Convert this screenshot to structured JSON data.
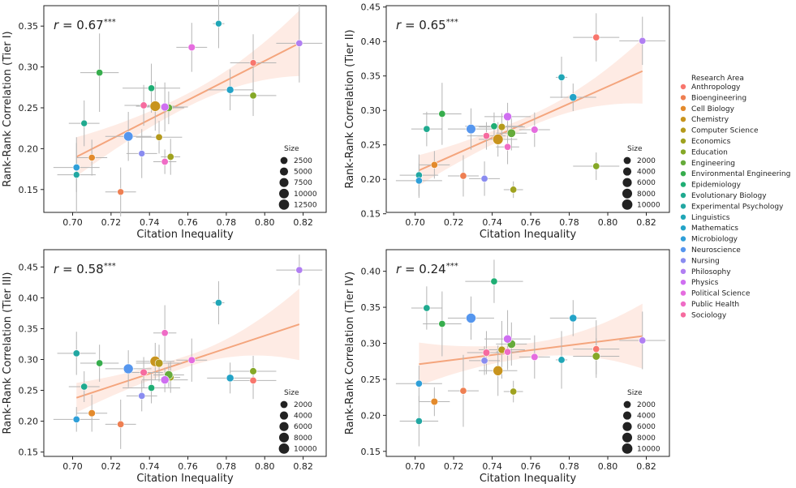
{
  "figure": {
    "legend_title": "Research Area",
    "areas": [
      "Anthropology",
      "Bioengineering",
      "Cell Biology",
      "Chemistry",
      "Computer Science",
      "Economics",
      "Education",
      "Engineering",
      "Environmental Engineering",
      "Epidemiology",
      "Evolutionary Biology",
      "Experimental Psychology",
      "Linguistics",
      "Mathematics",
      "Microbiology",
      "Neuroscience",
      "Nursing",
      "Philosophy",
      "Physics",
      "Political Science",
      "Public Health",
      "Sociology"
    ],
    "colors": [
      "#f8766d",
      "#ee7f52",
      "#e38a2c",
      "#c8941e",
      "#b59a1c",
      "#9fa21f",
      "#85a827",
      "#66ab3b",
      "#37ad4d",
      "#1fae74",
      "#20aa8f",
      "#22a7a2",
      "#20a6b6",
      "#23a3c7",
      "#2f9fd8",
      "#5596ee",
      "#8a8cf0",
      "#b17ff2",
      "#cf6ff1",
      "#e56ddf",
      "#ef6cc6",
      "#f66b9f"
    ],
    "inequality": [
      0.794,
      0.725,
      0.71,
      0.743,
      0.745,
      0.751,
      0.794,
      0.75,
      0.714,
      0.741,
      0.706,
      0.702,
      0.776,
      0.782,
      0.702,
      0.729,
      0.736,
      0.818,
      0.748,
      0.762,
      0.748,
      0.737
    ],
    "ineq_err": [
      0.012,
      0.008,
      0.008,
      0.01,
      0.012,
      0.005,
      0.012,
      0.008,
      0.01,
      0.015,
      0.008,
      0.01,
      0.003,
      0.012,
      0.012,
      0.012,
      0.008,
      0.012,
      0.012,
      0.008,
      0.006,
      0.01
    ]
  },
  "chart_data": [
    {
      "type": "scatter",
      "annotation": "r = 0.67***",
      "xlabel": "Citation Inequality",
      "ylabel": "Rank-Rank Correlation (Tier I)",
      "xlim": [
        0.685,
        0.832
      ],
      "ylim": [
        0.122,
        0.375
      ],
      "xticks": [
        0.7,
        0.72,
        0.74,
        0.76,
        0.78,
        0.8,
        0.82
      ],
      "xticklabels": [
        "0.70",
        "0.72",
        "0.74",
        "0.76",
        "0.78",
        "0.80",
        "0.82"
      ],
      "yticks": [
        0.15,
        0.2,
        0.25,
        0.3,
        0.35
      ],
      "yticklabels": [
        "0.15",
        "0.20",
        "0.25",
        "0.30",
        "0.35"
      ],
      "y": [
        0.305,
        0.147,
        0.189,
        0.252,
        0.214,
        0.19,
        0.265,
        0.25,
        0.293,
        0.274,
        0.231,
        0.168,
        0.353,
        0.272,
        0.177,
        0.215,
        0.194,
        0.329,
        0.251,
        0.324,
        0.184,
        0.253
      ],
      "y_err": [
        0.035,
        0.03,
        0.022,
        0.03,
        0.02,
        0.022,
        0.025,
        0.02,
        0.048,
        0.03,
        0.028,
        0.046,
        0.03,
        0.025,
        0.03,
        0.03,
        0.03,
        0.048,
        0.03,
        0.03,
        0.015,
        0.025
      ],
      "sizes": [
        1500,
        1500,
        1800,
        13000,
        2000,
        2000,
        2000,
        3500,
        2000,
        1800,
        1500,
        1500,
        1500,
        3000,
        2000,
        9000,
        1500,
        2000,
        4500,
        2500,
        2000,
        2000
      ],
      "fit": {
        "x0": 0.702,
        "y0": 0.19,
        "x1": 0.818,
        "y1": 0.329,
        "ci0": 0.024,
        "cim": 0.008,
        "ci1": 0.04
      },
      "size_legend": {
        "title": "Size",
        "labels": [
          "2500",
          "5000",
          "7500",
          "10000",
          "12500"
        ],
        "values": [
          2500,
          5000,
          7500,
          10000,
          12500
        ]
      }
    },
    {
      "type": "scatter",
      "annotation": "r = 0.65***",
      "xlabel": "Citation Inequality",
      "ylabel": "Rank-Rank Correlation (Tier II)",
      "xlim": [
        0.685,
        0.832
      ],
      "ylim": [
        0.152,
        0.452
      ],
      "xticks": [
        0.7,
        0.72,
        0.74,
        0.76,
        0.78,
        0.8,
        0.82
      ],
      "xticklabels": [
        "0.70",
        "0.72",
        "0.74",
        "0.76",
        "0.78",
        "0.80",
        "0.82"
      ],
      "yticks": [
        0.15,
        0.2,
        0.25,
        0.3,
        0.35,
        0.4,
        0.45
      ],
      "yticklabels": [
        "0.15",
        "0.20",
        "0.25",
        "0.30",
        "0.35",
        "0.40",
        "0.45"
      ],
      "y": [
        0.406,
        0.205,
        0.221,
        0.258,
        0.276,
        0.185,
        0.219,
        0.267,
        0.295,
        0.277,
        0.273,
        0.206,
        0.348,
        0.319,
        0.198,
        0.273,
        0.201,
        0.401,
        0.291,
        0.272,
        0.247,
        0.263
      ],
      "y_err": [
        0.035,
        0.03,
        0.02,
        0.025,
        0.02,
        0.012,
        0.02,
        0.025,
        0.045,
        0.02,
        0.025,
        0.03,
        0.03,
        0.02,
        0.025,
        0.03,
        0.025,
        0.035,
        0.02,
        0.025,
        0.025,
        0.02
      ],
      "sizes": [
        1500,
        1500,
        1500,
        10000,
        2000,
        1500,
        1500,
        4500,
        1500,
        1500,
        1500,
        1500,
        1500,
        2500,
        1500,
        7000,
        1500,
        1500,
        4000,
        2000,
        1500,
        1500
      ],
      "fit": {
        "x0": 0.702,
        "y0": 0.213,
        "x1": 0.818,
        "y1": 0.357,
        "ci0": 0.022,
        "cim": 0.008,
        "ci1": 0.047
      },
      "size_legend": {
        "title": "Size",
        "labels": [
          "2000",
          "4000",
          "6000",
          "8000",
          "10000"
        ],
        "values": [
          2000,
          4000,
          6000,
          8000,
          10000
        ]
      }
    },
    {
      "type": "scatter",
      "annotation": "r = 0.58***",
      "xlabel": "Citation Inequality",
      "ylabel": "Rank-Rank Correlation (Tier III)",
      "xlim": [
        0.685,
        0.832
      ],
      "ylim": [
        0.143,
        0.478
      ],
      "xticks": [
        0.7,
        0.72,
        0.74,
        0.76,
        0.78,
        0.8,
        0.82
      ],
      "xticklabels": [
        "0.70",
        "0.72",
        "0.74",
        "0.76",
        "0.78",
        "0.80",
        "0.82"
      ],
      "yticks": [
        0.15,
        0.2,
        0.25,
        0.3,
        0.35,
        0.4,
        0.45
      ],
      "yticklabels": [
        "0.15",
        "0.20",
        "0.25",
        "0.30",
        "0.35",
        "0.40",
        "0.45"
      ],
      "y": [
        0.266,
        0.195,
        0.213,
        0.297,
        0.294,
        0.271,
        0.281,
        0.275,
        0.294,
        0.254,
        0.256,
        0.31,
        0.392,
        0.27,
        0.203,
        0.285,
        0.241,
        0.445,
        0.267,
        0.299,
        0.343,
        0.279
      ],
      "y_err": [
        0.03,
        0.04,
        0.03,
        0.03,
        0.03,
        0.025,
        0.025,
        0.02,
        0.03,
        0.025,
        0.025,
        0.035,
        0.035,
        0.025,
        0.02,
        0.03,
        0.025,
        0.025,
        0.02,
        0.035,
        0.045,
        0.025
      ],
      "sizes": [
        1500,
        1500,
        1800,
        10000,
        3500,
        1500,
        1800,
        4500,
        1500,
        1500,
        1500,
        1500,
        1500,
        2500,
        1500,
        8000,
        1500,
        1500,
        4000,
        1800,
        1500,
        2000
      ],
      "fit": {
        "x0": 0.702,
        "y0": 0.238,
        "x1": 0.818,
        "y1": 0.357,
        "ci0": 0.024,
        "cim": 0.009,
        "ci1": 0.058
      },
      "size_legend": {
        "title": "Size",
        "labels": [
          "2000",
          "4000",
          "6000",
          "8000",
          "10000"
        ],
        "values": [
          2000,
          4000,
          6000,
          8000,
          10000
        ]
      }
    },
    {
      "type": "scatter",
      "annotation": "r = 0.24***",
      "xlabel": "Citation Inequality",
      "ylabel": "Rank-Rank Correlation (Tier IV)",
      "xlim": [
        0.685,
        0.832
      ],
      "ylim": [
        0.143,
        0.43
      ],
      "xticks": [
        0.7,
        0.72,
        0.74,
        0.76,
        0.78,
        0.8,
        0.82
      ],
      "xticklabels": [
        "0.70",
        "0.72",
        "0.74",
        "0.76",
        "0.78",
        "0.80",
        "0.82"
      ],
      "yticks": [
        0.15,
        0.2,
        0.25,
        0.3,
        0.35,
        0.4
      ],
      "yticklabels": [
        "0.15",
        "0.20",
        "0.25",
        "0.30",
        "0.35",
        "0.40"
      ],
      "y": [
        0.292,
        0.234,
        0.219,
        0.262,
        0.291,
        0.233,
        0.282,
        0.299,
        0.327,
        0.386,
        0.349,
        0.192,
        0.277,
        0.335,
        0.244,
        0.335,
        0.276,
        0.304,
        0.306,
        0.281,
        0.288,
        0.287
      ],
      "y_err": [
        0.04,
        0.05,
        0.02,
        0.035,
        0.04,
        0.015,
        0.025,
        0.03,
        0.045,
        0.03,
        0.03,
        0.035,
        0.04,
        0.025,
        0.025,
        0.03,
        0.02,
        0.04,
        0.04,
        0.03,
        0.025,
        0.03
      ],
      "sizes": [
        1500,
        1500,
        1800,
        8000,
        2500,
        1500,
        3000,
        4500,
        1500,
        1500,
        1500,
        1500,
        1500,
        2500,
        1500,
        8000,
        1500,
        1500,
        4000,
        1800,
        1500,
        2000
      ],
      "fit": {
        "x0": 0.702,
        "y0": 0.271,
        "x1": 0.818,
        "y1": 0.31,
        "ci0": 0.03,
        "cim": 0.01,
        "ci1": 0.045
      },
      "size_legend": {
        "title": "Size",
        "labels": [
          "2000",
          "4000",
          "6000",
          "8000",
          "10000"
        ],
        "values": [
          2000,
          4000,
          6000,
          8000,
          10000
        ]
      }
    }
  ]
}
